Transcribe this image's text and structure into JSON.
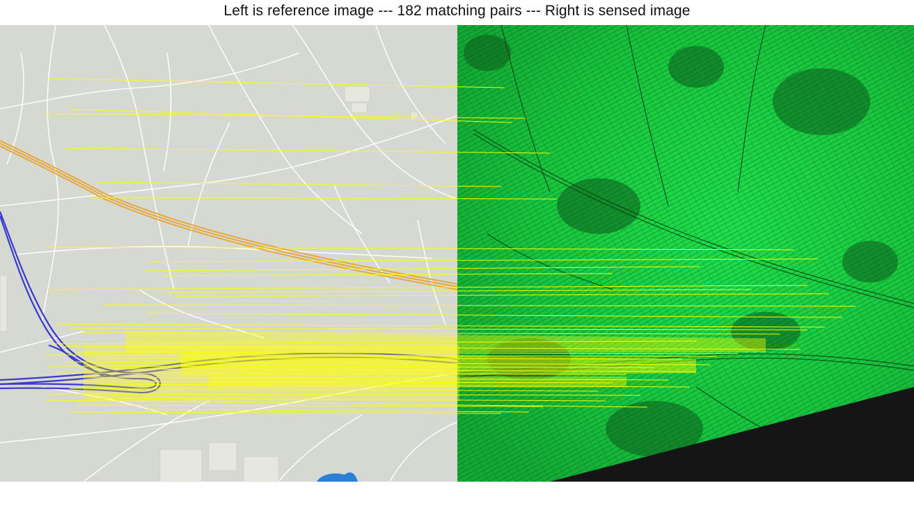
{
  "title": "Left is reference image --- 182 matching pairs --- Right is sensed image",
  "colors": {
    "map_background": "#d6d8d2",
    "map_road": "#ffffff",
    "highway_orange": "#e7a83a",
    "highway_blue": "#3a3ad0",
    "water": "#2a7fd6",
    "terrain_green": "#22d84a",
    "terrain_dark": "#0a3a12",
    "nodata": "#151515",
    "match_line": "#ffff00"
  },
  "panels": {
    "left": "reference-map",
    "right": "sensed-terrain"
  }
}
